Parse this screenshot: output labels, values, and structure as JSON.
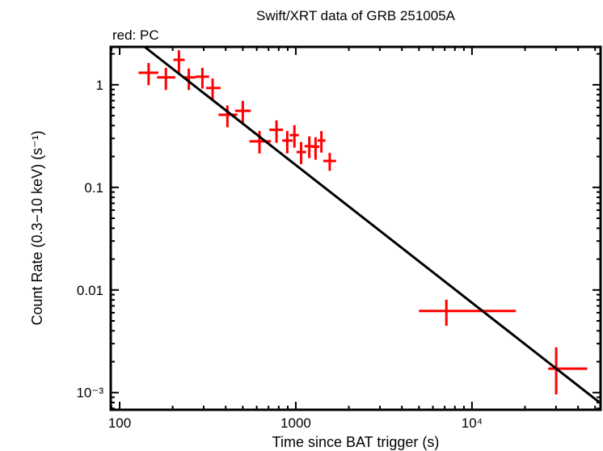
{
  "chart_data": {
    "type": "scatter",
    "title": "Swift/XRT data of GRB 251005A",
    "legend_note": "red: PC",
    "xlabel": "Time since BAT trigger (s)",
    "ylabel": "Count Rate (0.3−10 keV) (s⁻¹)",
    "xscale": "log",
    "yscale": "log",
    "xlim": [
      89,
      53700
    ],
    "ylim": [
      0.00068,
      2.34
    ],
    "xticks": [
      {
        "value": 100,
        "label": "100"
      },
      {
        "value": 1000,
        "label": "1000"
      },
      {
        "value": 10000,
        "label": "10⁴"
      }
    ],
    "yticks": [
      {
        "value": 1,
        "label": "1"
      },
      {
        "value": 0.1,
        "label": "0.1"
      },
      {
        "value": 0.01,
        "label": "0.01"
      },
      {
        "value": 0.001,
        "label": "10⁻³"
      }
    ],
    "grid": false,
    "series": [
      {
        "name": "PC",
        "color": "#ff0000",
        "points": [
          {
            "t": 146,
            "t_lo": 128,
            "t_hi": 166,
            "rate": 1.31,
            "r_lo": 0.99,
            "r_hi": 1.63
          },
          {
            "t": 183,
            "t_lo": 163,
            "t_hi": 207,
            "rate": 1.18,
            "r_lo": 0.89,
            "r_hi": 1.46
          },
          {
            "t": 217,
            "t_lo": 202,
            "t_hi": 234,
            "rate": 1.75,
            "r_lo": 1.31,
            "r_hi": 2.17
          },
          {
            "t": 247,
            "t_lo": 232,
            "t_hi": 270,
            "rate": 1.18,
            "r_lo": 0.89,
            "r_hi": 1.44
          },
          {
            "t": 295,
            "t_lo": 270,
            "t_hi": 322,
            "rate": 1.2,
            "r_lo": 0.92,
            "r_hi": 1.46
          },
          {
            "t": 337,
            "t_lo": 309,
            "t_hi": 374,
            "rate": 0.93,
            "r_lo": 0.72,
            "r_hi": 1.15
          },
          {
            "t": 409,
            "t_lo": 364,
            "t_hi": 466,
            "rate": 0.51,
            "r_lo": 0.385,
            "r_hi": 0.63
          },
          {
            "t": 500,
            "t_lo": 452,
            "t_hi": 555,
            "rate": 0.557,
            "r_lo": 0.429,
            "r_hi": 0.696
          },
          {
            "t": 622,
            "t_lo": 545,
            "t_hi": 723,
            "rate": 0.281,
            "r_lo": 0.214,
            "r_hi": 0.354
          },
          {
            "t": 777,
            "t_lo": 707,
            "t_hi": 847,
            "rate": 0.364,
            "r_lo": 0.272,
            "r_hi": 0.45
          },
          {
            "t": 894,
            "t_lo": 838,
            "t_hi": 960,
            "rate": 0.286,
            "r_lo": 0.214,
            "r_hi": 0.354
          },
          {
            "t": 982,
            "t_lo": 924,
            "t_hi": 1040,
            "rate": 0.323,
            "r_lo": 0.244,
            "r_hi": 0.404
          },
          {
            "t": 1072,
            "t_lo": 1010,
            "t_hi": 1144,
            "rate": 0.221,
            "r_lo": 0.168,
            "r_hi": 0.277
          },
          {
            "t": 1193,
            "t_lo": 1121,
            "t_hi": 1256,
            "rate": 0.252,
            "r_lo": 0.193,
            "r_hi": 0.314
          },
          {
            "t": 1294,
            "t_lo": 1225,
            "t_hi": 1360,
            "rate": 0.249,
            "r_lo": 0.186,
            "r_hi": 0.308
          },
          {
            "t": 1397,
            "t_lo": 1329,
            "t_hi": 1475,
            "rate": 0.286,
            "r_lo": 0.218,
            "r_hi": 0.354
          },
          {
            "t": 1558,
            "t_lo": 1432,
            "t_hi": 1693,
            "rate": 0.181,
            "r_lo": 0.145,
            "r_hi": 0.217
          },
          {
            "t": 7155,
            "t_lo": 5000,
            "t_hi": 17750,
            "rate": 0.00624,
            "r_lo": 0.00448,
            "r_hi": 0.00805
          },
          {
            "t": 30060,
            "t_lo": 27080,
            "t_hi": 45130,
            "rate": 0.00171,
            "r_lo": 0.00096,
            "r_hi": 0.00276
          }
        ]
      }
    ],
    "model": {
      "type": "power-law",
      "color": "#000000",
      "index": 1.342,
      "norm_at_1000s": 0.165
    }
  }
}
